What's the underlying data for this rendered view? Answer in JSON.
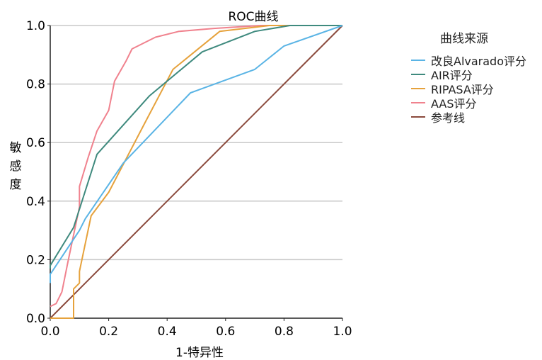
{
  "chart_data": {
    "type": "line",
    "title": "ROC曲线",
    "xlabel": "1-特异性",
    "ylabel": "敏感度",
    "xlim": [
      0,
      1
    ],
    "ylim": [
      0,
      1
    ],
    "xticks": [
      "0.0",
      "0.2",
      "0.4",
      "0.6",
      "0.8",
      "1.0"
    ],
    "yticks": [
      "0.0",
      "0.2",
      "0.4",
      "0.6",
      "0.8",
      "1.0"
    ],
    "grid": "horizontal",
    "legend_title": "曲线来源",
    "legend_position": "right",
    "series": [
      {
        "name": "改良Alvarado评分",
        "color": "#5ab4e5",
        "x": [
          0,
          0,
          0.1,
          0.12,
          0.25,
          0.48,
          0.7,
          0.8,
          1.0
        ],
        "y": [
          0.12,
          0.15,
          0.3,
          0.34,
          0.53,
          0.77,
          0.85,
          0.93,
          1.0
        ]
      },
      {
        "name": "AIR评分",
        "color": "#3f8a7e",
        "x": [
          0,
          0,
          0.08,
          0.16,
          0.34,
          0.52,
          0.7,
          0.82,
          1.0
        ],
        "y": [
          0.17,
          0.18,
          0.31,
          0.56,
          0.76,
          0.91,
          0.98,
          1.0,
          1.0
        ]
      },
      {
        "name": "RIPASA评分",
        "color": "#e6a23c",
        "x": [
          0,
          0.08,
          0.08,
          0.1,
          0.1,
          0.14,
          0.2,
          0.32,
          0.42,
          0.58,
          0.75,
          0.8,
          1.0
        ],
        "y": [
          0,
          0,
          0.1,
          0.12,
          0.16,
          0.35,
          0.43,
          0.66,
          0.85,
          0.98,
          1.0,
          1.0,
          1.0
        ]
      },
      {
        "name": "AAS评分",
        "color": "#f0828e",
        "x": [
          0,
          0.02,
          0.04,
          0.06,
          0.1,
          0.1,
          0.13,
          0.16,
          0.2,
          0.22,
          0.26,
          0.28,
          0.36,
          0.44,
          0.56,
          0.72,
          1.0
        ],
        "y": [
          0.04,
          0.05,
          0.09,
          0.19,
          0.38,
          0.45,
          0.55,
          0.64,
          0.71,
          0.81,
          0.88,
          0.92,
          0.96,
          0.98,
          0.99,
          1.0,
          1.0
        ]
      },
      {
        "name": "参考线",
        "color": "#8b4a3c",
        "x": [
          0,
          1
        ],
        "y": [
          0,
          1
        ]
      }
    ]
  }
}
